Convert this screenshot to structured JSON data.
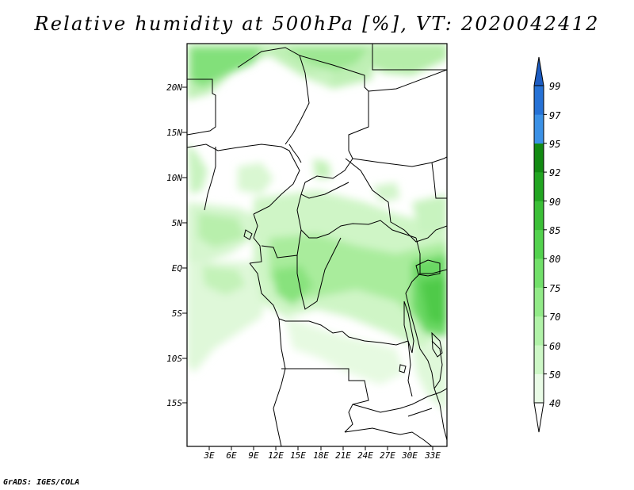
{
  "title": "Relative humidity at 500hPa [%], VT: 2020042412",
  "footer": "GrADS: IGES/COLA",
  "map": {
    "lat_labels": [
      "20N",
      "15N",
      "10N",
      "5N",
      "EQ",
      "5S",
      "10S",
      "15S"
    ],
    "lon_labels": [
      "3E",
      "6E",
      "9E",
      "12E",
      "15E",
      "18E",
      "21E",
      "24E",
      "27E",
      "30E",
      "33E"
    ]
  },
  "colorbar": {
    "levels": [
      "99",
      "97",
      "95",
      "92",
      "90",
      "85",
      "80",
      "75",
      "70",
      "60",
      "50",
      "40"
    ],
    "colors": [
      "#ffffff",
      "#e9fbe6",
      "#cdf7c6",
      "#b1f2a8",
      "#92ea88",
      "#72e06a",
      "#53d24e",
      "#3bbf37",
      "#22a521",
      "#128a12",
      "#3b91e6",
      "#2672d6",
      "#1c5cc2"
    ]
  }
}
